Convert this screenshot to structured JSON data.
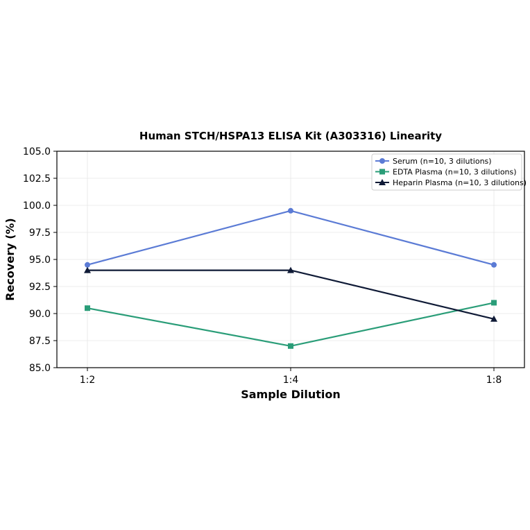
{
  "chart_data": {
    "type": "line",
    "title": "Human STCH/HSPA13 ELISA Kit (A303316) Linearity",
    "xlabel": "Sample Dilution",
    "ylabel": "Recovery (%)",
    "categories": [
      "1:2",
      "1:4",
      "1:8"
    ],
    "ylim": [
      85.0,
      105.0
    ],
    "yticks": [
      "85.0",
      "87.5",
      "90.0",
      "92.5",
      "95.0",
      "97.5",
      "100.0",
      "102.5",
      "105.0"
    ],
    "grid": true,
    "legend_position": "top-right",
    "series": [
      {
        "name": "Serum (n=10, 3 dilutions)",
        "values": [
          94.5,
          99.5,
          94.5
        ],
        "color": "#5b7bd5",
        "marker": "circle"
      },
      {
        "name": "EDTA Plasma (n=10, 3 dilutions)",
        "values": [
          90.5,
          87.0,
          91.0
        ],
        "color": "#2a9d78",
        "marker": "square"
      },
      {
        "name": "Heparin Plasma (n=10, 3 dilutions)",
        "values": [
          94.0,
          94.0,
          89.5
        ],
        "color": "#0f1a36",
        "marker": "triangle"
      }
    ]
  }
}
